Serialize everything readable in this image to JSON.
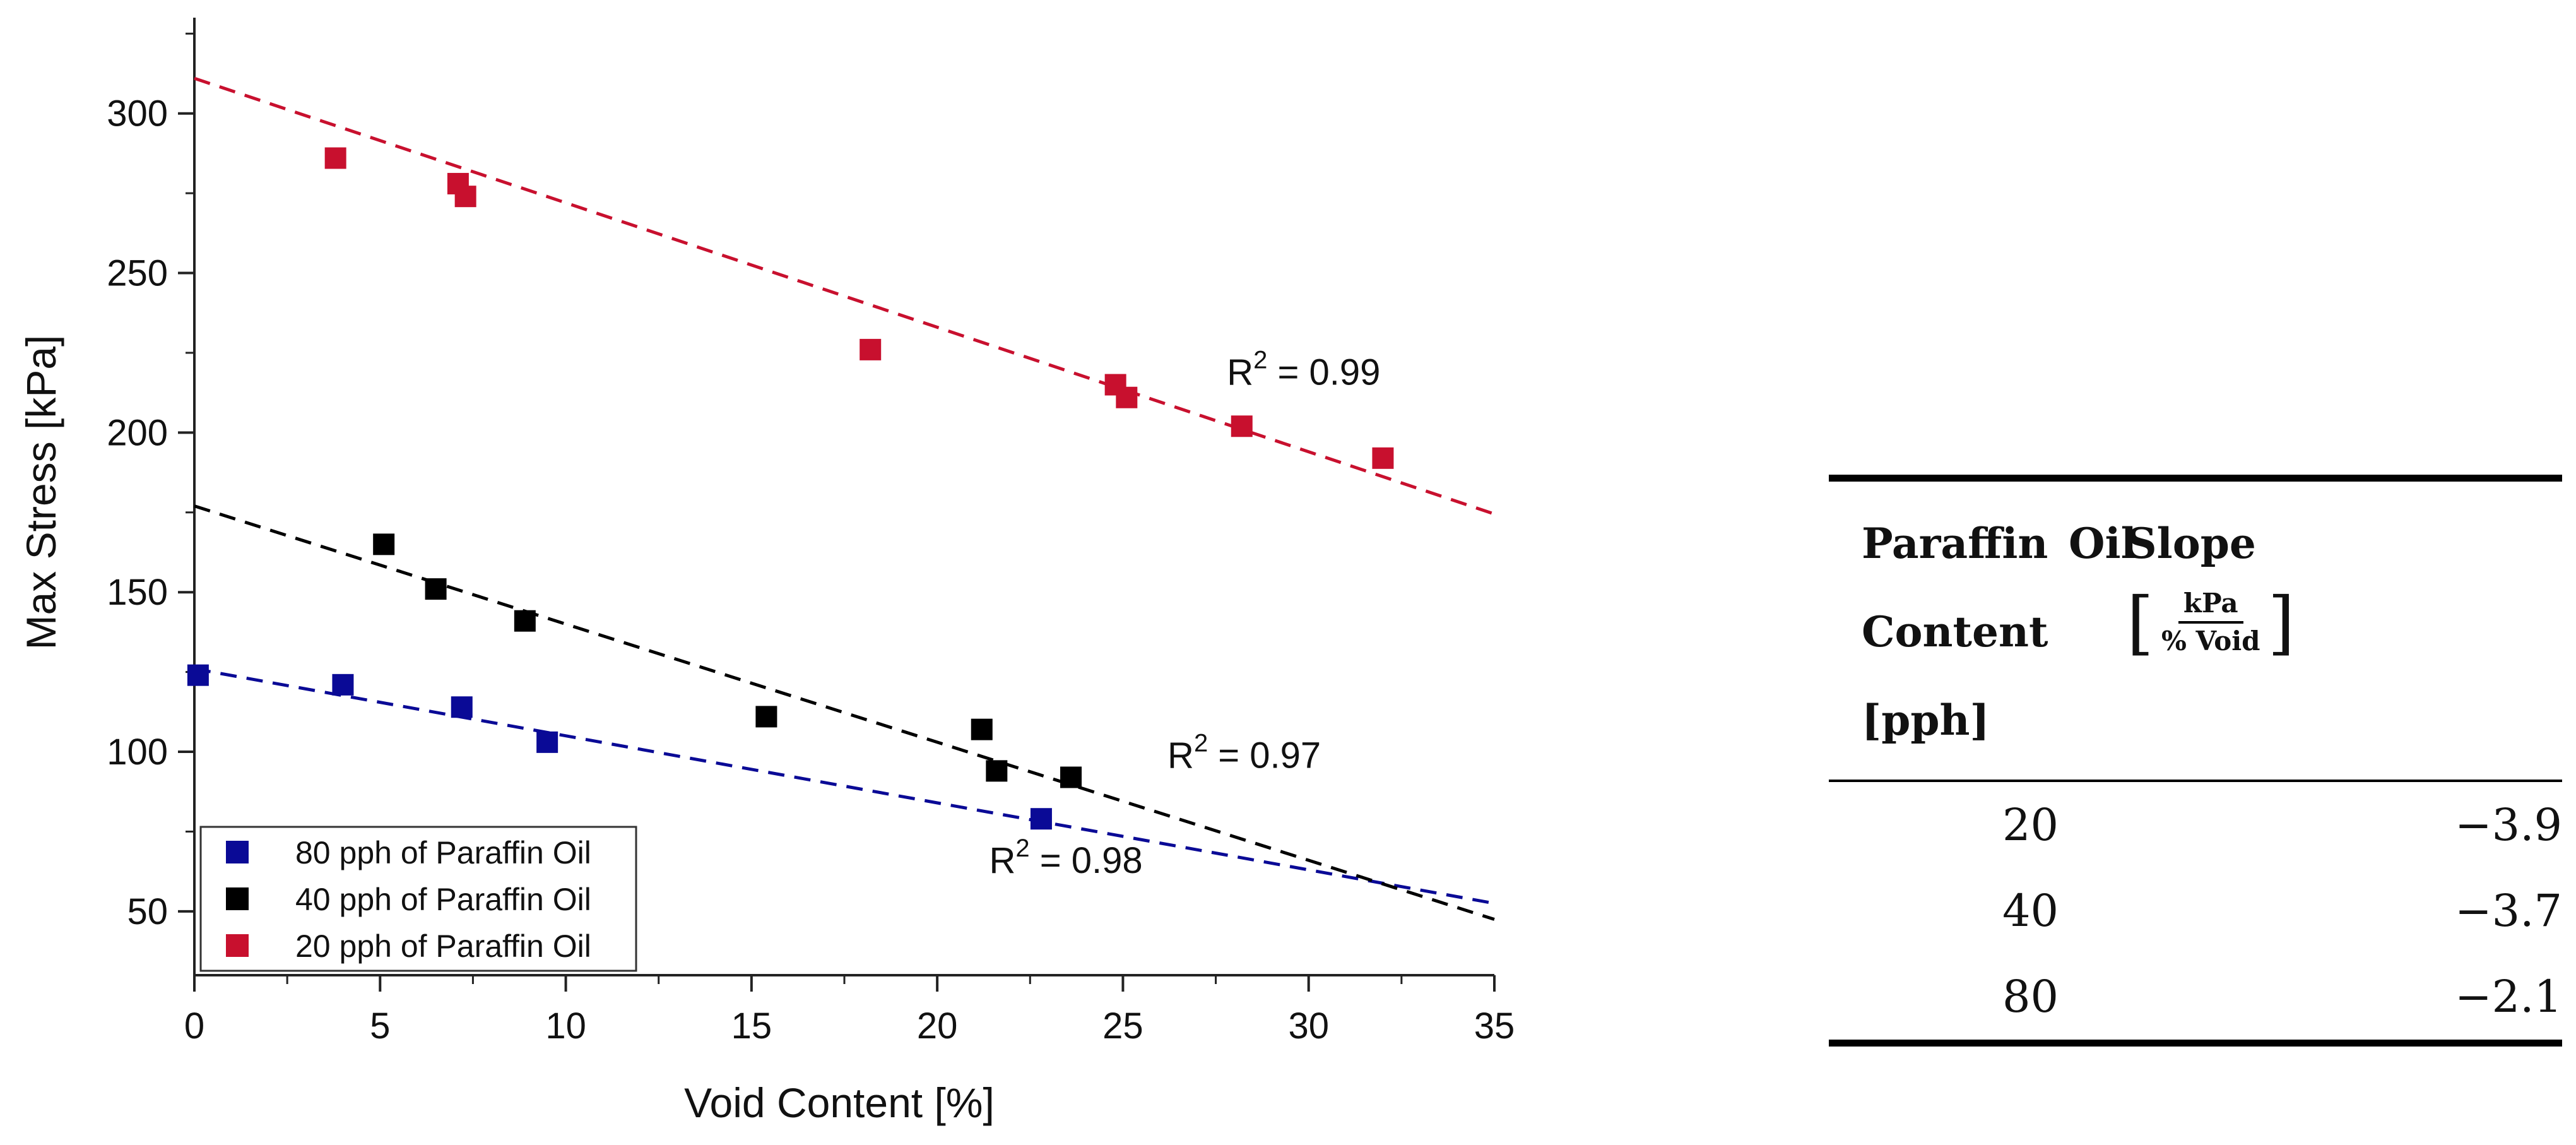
{
  "chart_data": {
    "type": "scatter",
    "xlabel": "Void Content [%]",
    "ylabel": "Max Stress [kPa]",
    "xlim": [
      0,
      35
    ],
    "ylim": [
      30,
      330
    ],
    "xticks": [
      0,
      5,
      10,
      15,
      20,
      25,
      30,
      35
    ],
    "yticks": [
      50,
      100,
      150,
      200,
      250,
      300
    ],
    "grid": false,
    "legend_position": "bottom-left",
    "series": [
      {
        "name": "80 pph of Paraffin Oil",
        "color": "#0a0a96",
        "points": [
          [
            0.1,
            124
          ],
          [
            4.0,
            121
          ],
          [
            7.2,
            114
          ],
          [
            9.5,
            103
          ],
          [
            22.8,
            79
          ]
        ],
        "fit": {
          "intercept": 126,
          "slope": -2.1
        },
        "r2_label": "R2 = 0.98",
        "r2_label_parts": {
          "prefix": "R",
          "sup": "2",
          "suffix": " = 0.98"
        }
      },
      {
        "name": "40 pph of Paraffin Oil",
        "color": "#000000",
        "points": [
          [
            5.1,
            165
          ],
          [
            6.5,
            151
          ],
          [
            8.9,
            141
          ],
          [
            15.4,
            111
          ],
          [
            21.2,
            107
          ],
          [
            21.6,
            94
          ],
          [
            23.6,
            92
          ]
        ],
        "fit": {
          "intercept": 177,
          "slope": -3.7
        },
        "r2_label": "R2 = 0.97",
        "r2_label_parts": {
          "prefix": "R",
          "sup": "2",
          "suffix": " = 0.97"
        }
      },
      {
        "name": "20 pph of Paraffin Oil",
        "color": "#c8102e",
        "points": [
          [
            3.8,
            286
          ],
          [
            7.1,
            278
          ],
          [
            7.3,
            274
          ],
          [
            18.2,
            226
          ],
          [
            24.8,
            215
          ],
          [
            25.1,
            211
          ],
          [
            28.2,
            202
          ],
          [
            32.0,
            192
          ]
        ],
        "fit": {
          "intercept": 311,
          "slope": -3.9
        },
        "r2_label": "R2 = 0.99",
        "r2_label_parts": {
          "prefix": "R",
          "sup": "2",
          "suffix": " = 0.99"
        }
      }
    ],
    "legend": [
      "80 pph of Paraffin Oil",
      "40 pph of Paraffin Oil",
      "20 pph of Paraffin Oil"
    ]
  },
  "table": {
    "header": {
      "col1_line1": "Paraffin",
      "col1_oil": "Oil",
      "col1_line2": "Content",
      "col1_line3": "[pph]",
      "col2_title": "Slope",
      "col2_unit_num": "kPa",
      "col2_unit_den": "% Void",
      "bracket_left": "[",
      "bracket_right": "]"
    },
    "rows": [
      {
        "pph": "20",
        "slope": "−3.9"
      },
      {
        "pph": "40",
        "slope": "−3.7"
      },
      {
        "pph": "80",
        "slope": "−2.1"
      }
    ]
  }
}
